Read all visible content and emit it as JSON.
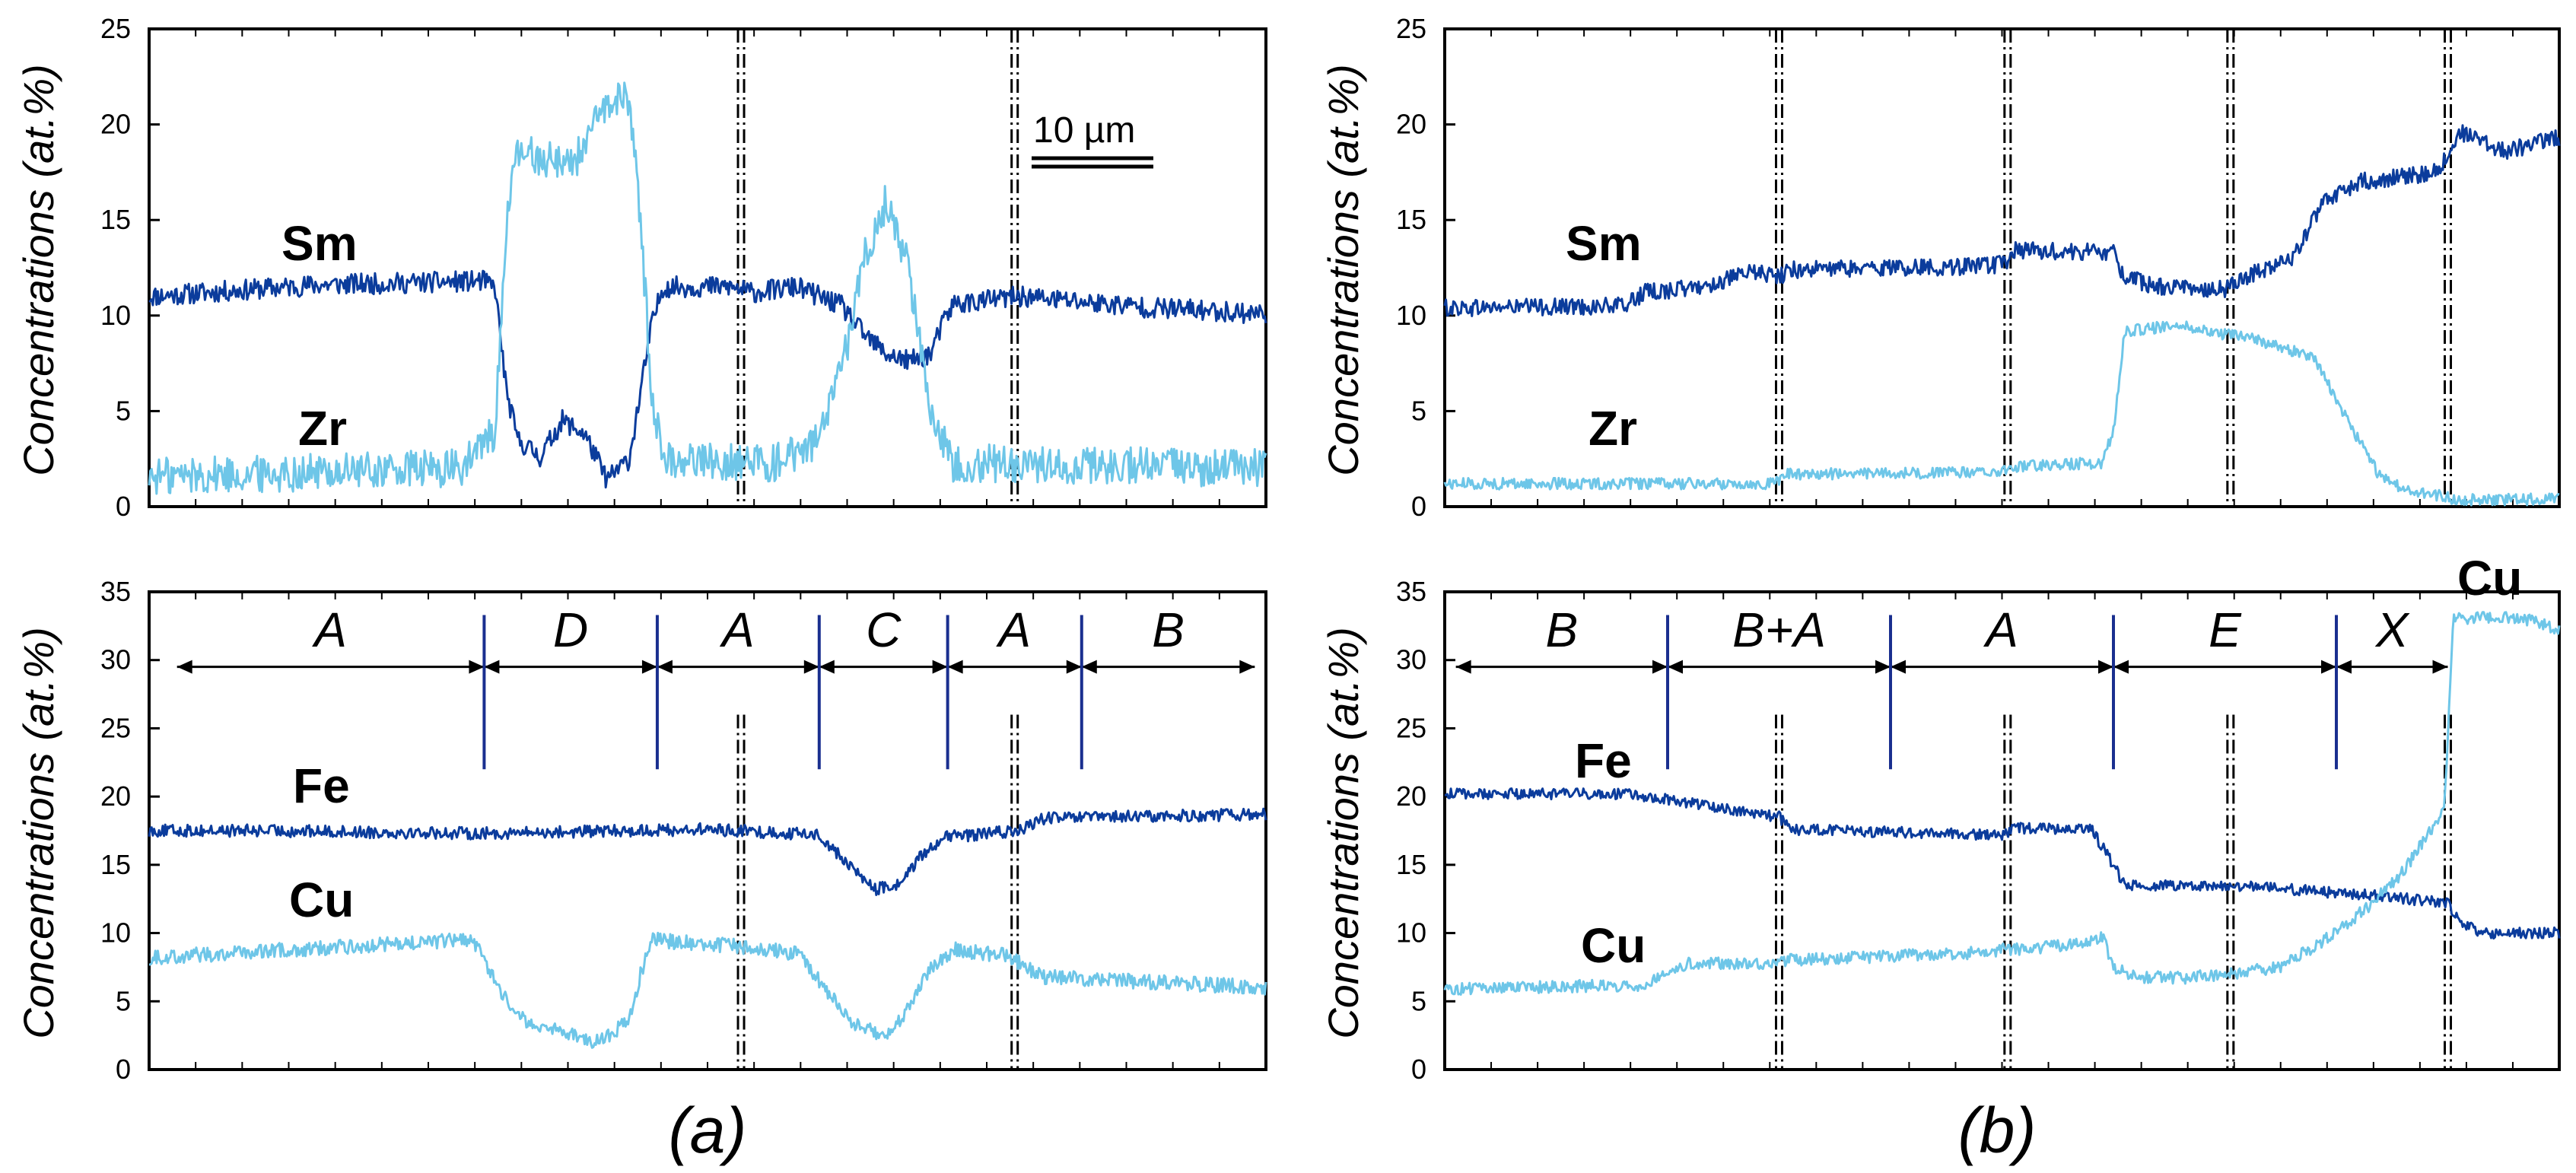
{
  "colors": {
    "dark_series": "#0b3c9c",
    "light_series": "#6ec6e8",
    "phase_divider": "#1a2f8f",
    "axis": "#000000"
  },
  "scale_bar": {
    "label": "10 µm"
  },
  "captions": [
    "(a)",
    "(b)"
  ],
  "axis_label": "Concentrations (at.%)",
  "chart_data": [
    {
      "id": "a-top",
      "type": "line",
      "title": "",
      "xlabel": "",
      "ylabel": "Concentrations (at.%)",
      "ylim": [
        0,
        25
      ],
      "yticks": [
        0,
        5,
        10,
        15,
        20,
        25
      ],
      "xlim": [
        0,
        100
      ],
      "grid": false,
      "legend": "none",
      "boundaries_x": [
        53,
        77.5
      ],
      "series": [
        {
          "name": "Sm",
          "color": "dark",
          "noise": 0.55,
          "profile": [
            [
              0,
              11
            ],
            [
              15,
              11.6
            ],
            [
              30,
              11.8
            ],
            [
              31,
              11.4
            ],
            [
              32,
              6
            ],
            [
              33,
              3.5
            ],
            [
              35,
              2.6
            ],
            [
              37,
              4.5
            ],
            [
              39,
              3.8
            ],
            [
              41,
              1.4
            ],
            [
              43,
              2.5
            ],
            [
              45,
              9.5
            ],
            [
              46,
              11.5
            ],
            [
              52,
              11.5
            ],
            [
              54,
              11.2
            ],
            [
              58,
              11.5
            ],
            [
              62,
              10.5
            ],
            [
              64,
              9
            ],
            [
              66,
              8
            ],
            [
              68,
              7.6
            ],
            [
              70,
              8
            ],
            [
              71,
              9.5
            ],
            [
              72,
              10.6
            ],
            [
              78,
              11
            ],
            [
              90,
              10.4
            ],
            [
              100,
              10.1
            ]
          ]
        },
        {
          "name": "Zr",
          "color": "light",
          "noise": 1.0,
          "profile": [
            [
              0,
              1.6
            ],
            [
              28,
              2
            ],
            [
              31,
              4
            ],
            [
              32,
              15
            ],
            [
              33,
              18.5
            ],
            [
              38,
              18
            ],
            [
              41,
              21
            ],
            [
              43,
              21.5
            ],
            [
              44,
              15
            ],
            [
              45,
              6
            ],
            [
              46,
              2.5
            ],
            [
              56,
              2.3
            ],
            [
              60,
              3.5
            ],
            [
              62,
              7
            ],
            [
              64,
              13
            ],
            [
              66,
              16
            ],
            [
              68,
              12.5
            ],
            [
              70,
              5
            ],
            [
              72,
              2.3
            ],
            [
              100,
              2
            ]
          ]
        }
      ]
    },
    {
      "id": "b-top",
      "type": "line",
      "title": "",
      "xlabel": "",
      "ylabel": "Concentrations (at.%)",
      "ylim": [
        0,
        25
      ],
      "yticks": [
        0,
        5,
        10,
        15,
        20,
        25
      ],
      "xlim": [
        0,
        100
      ],
      "grid": false,
      "legend": "none",
      "boundaries_x": [
        30,
        50.5,
        70.5,
        90
      ],
      "series": [
        {
          "name": "Sm",
          "color": "dark",
          "noise": 0.45,
          "profile": [
            [
              0,
              10.4
            ],
            [
              16,
              10.5
            ],
            [
              18,
              11.2
            ],
            [
              23,
              11.5
            ],
            [
              28,
              12.3
            ],
            [
              30,
              12
            ],
            [
              31,
              12.4
            ],
            [
              49,
              12.6
            ],
            [
              50.5,
              12.8
            ],
            [
              51,
              13.4
            ],
            [
              60,
              13.3
            ],
            [
              61,
              12
            ],
            [
              64,
              11.5
            ],
            [
              70,
              11.4
            ],
            [
              71,
              11.8
            ],
            [
              76,
              13
            ],
            [
              79,
              16
            ],
            [
              82,
              17
            ],
            [
              89,
              17.5
            ],
            [
              90,
              18.4
            ],
            [
              91,
              19.6
            ],
            [
              93,
              19.2
            ],
            [
              95,
              18.6
            ],
            [
              100,
              19.3
            ]
          ]
        },
        {
          "name": "Zr",
          "color": "light",
          "noise": 0.3,
          "profile": [
            [
              0,
              1.2
            ],
            [
              29,
              1.2
            ],
            [
              30,
              1.4
            ],
            [
              30.5,
              1.7
            ],
            [
              50,
              1.8
            ],
            [
              50.5,
              2.1
            ],
            [
              59,
              2.3
            ],
            [
              60,
              4
            ],
            [
              61,
              9.2
            ],
            [
              66,
              9.5
            ],
            [
              70,
              9
            ],
            [
              72,
              8.9
            ],
            [
              78,
              7.8
            ],
            [
              81,
              4.5
            ],
            [
              84,
              1.5
            ],
            [
              87,
              0.7
            ],
            [
              89,
              0.6
            ],
            [
              91,
              0.35
            ],
            [
              100,
              0.4
            ]
          ]
        }
      ]
    },
    {
      "id": "a-bottom",
      "type": "line",
      "title": "",
      "xlabel": "",
      "ylabel": "Concentrations (at.%)",
      "ylim": [
        0,
        35
      ],
      "yticks": [
        0,
        5,
        10,
        15,
        20,
        25,
        30,
        35
      ],
      "xlim": [
        0,
        100
      ],
      "grid": false,
      "legend": "none",
      "boundaries_x": [
        53,
        77.5
      ],
      "phases": [
        {
          "label": "A",
          "from": 2.5,
          "to": 30
        },
        {
          "label": "D",
          "from": 30,
          "to": 45.5
        },
        {
          "label": "A",
          "from": 45.5,
          "to": 60
        },
        {
          "label": "C",
          "from": 60,
          "to": 71.5
        },
        {
          "label": "A",
          "from": 71.5,
          "to": 83.5
        },
        {
          "label": "B",
          "from": 83.5,
          "to": 99
        }
      ],
      "phase_dividers_x": [
        30,
        45.5,
        60,
        71.5,
        83.5
      ],
      "series": [
        {
          "name": "Fe",
          "color": "dark",
          "noise": 0.45,
          "profile": [
            [
              0,
              17.5
            ],
            [
              10,
              17.5
            ],
            [
              30,
              17.3
            ],
            [
              50,
              17.6
            ],
            [
              60,
              17.2
            ],
            [
              62,
              15.5
            ],
            [
              65,
              13.2
            ],
            [
              67,
              13.5
            ],
            [
              69,
              15.5
            ],
            [
              71,
              17
            ],
            [
              78,
              17.5
            ],
            [
              80,
              18.4
            ],
            [
              100,
              18.7
            ]
          ]
        },
        {
          "name": "Cu",
          "color": "light",
          "noise": 0.55,
          "profile": [
            [
              0,
              8.2
            ],
            [
              29,
              9.5
            ],
            [
              31,
              6.5
            ],
            [
              33,
              3.8
            ],
            [
              36,
              3
            ],
            [
              40,
              2
            ],
            [
              43,
              3.5
            ],
            [
              44,
              7
            ],
            [
              45,
              9.5
            ],
            [
              53,
              9
            ],
            [
              58,
              8.5
            ],
            [
              60,
              6.5
            ],
            [
              63,
              3.5
            ],
            [
              66,
              2.3
            ],
            [
              68,
              4.5
            ],
            [
              70,
              7.5
            ],
            [
              72,
              8.8
            ],
            [
              77,
              8.3
            ],
            [
              80,
              6.8
            ],
            [
              100,
              6
            ]
          ]
        }
      ]
    },
    {
      "id": "b-bottom",
      "type": "line",
      "title": "",
      "xlabel": "",
      "ylabel": "Concentrations (at.%)",
      "ylim": [
        0,
        35
      ],
      "yticks": [
        0,
        5,
        10,
        15,
        20,
        25,
        30,
        35
      ],
      "xlim": [
        0,
        100
      ],
      "grid": false,
      "legend": "none",
      "boundaries_x": [
        30,
        50.5,
        70.5,
        90
      ],
      "phases": [
        {
          "label": "B",
          "from": 1,
          "to": 20
        },
        {
          "label": "B+A",
          "from": 20,
          "to": 40
        },
        {
          "label": "A",
          "from": 40,
          "to": 60
        },
        {
          "label": "E",
          "from": 60,
          "to": 80
        },
        {
          "label": "X",
          "from": 80,
          "to": 90
        }
      ],
      "phase_dividers_x": [
        20,
        40,
        60,
        80
      ],
      "series": [
        {
          "name": "Fe",
          "color": "dark",
          "noise": 0.4,
          "profile": [
            [
              0,
              20.2
            ],
            [
              16,
              20.2
            ],
            [
              20,
              19.8
            ],
            [
              30,
              18.5
            ],
            [
              31,
              17.6
            ],
            [
              49,
              17.2
            ],
            [
              50,
              17
            ],
            [
              51,
              17.7
            ],
            [
              58,
              17.6
            ],
            [
              60,
              15
            ],
            [
              61,
              13.5
            ],
            [
              71,
              13.5
            ],
            [
              76,
              13.2
            ],
            [
              84,
              12.7
            ],
            [
              90,
              12.2
            ],
            [
              91,
              10.8
            ],
            [
              93,
              10
            ],
            [
              100,
              10
            ]
          ]
        },
        {
          "name": "Cu",
          "color": "light",
          "noise": 0.45,
          "profile": [
            [
              0,
              5.9
            ],
            [
              18,
              6.2
            ],
            [
              20,
              7.3
            ],
            [
              22,
              7.8
            ],
            [
              29,
              7.8
            ],
            [
              30,
              8
            ],
            [
              49,
              8.6
            ],
            [
              50,
              8.8
            ],
            [
              52,
              8.8
            ],
            [
              57,
              9.2
            ],
            [
              59,
              9.8
            ],
            [
              60,
              7.5
            ],
            [
              62,
              6.8
            ],
            [
              66,
              6.7
            ],
            [
              70,
              7
            ],
            [
              75,
              7.5
            ],
            [
              79,
              9.5
            ],
            [
              83,
              12
            ],
            [
              86,
              14.5
            ],
            [
              88,
              17
            ],
            [
              89.7,
              19
            ],
            [
              90.5,
              33
            ],
            [
              95,
              33.2
            ],
            [
              98,
              32.8
            ],
            [
              100,
              32.2
            ]
          ]
        }
      ]
    }
  ]
}
